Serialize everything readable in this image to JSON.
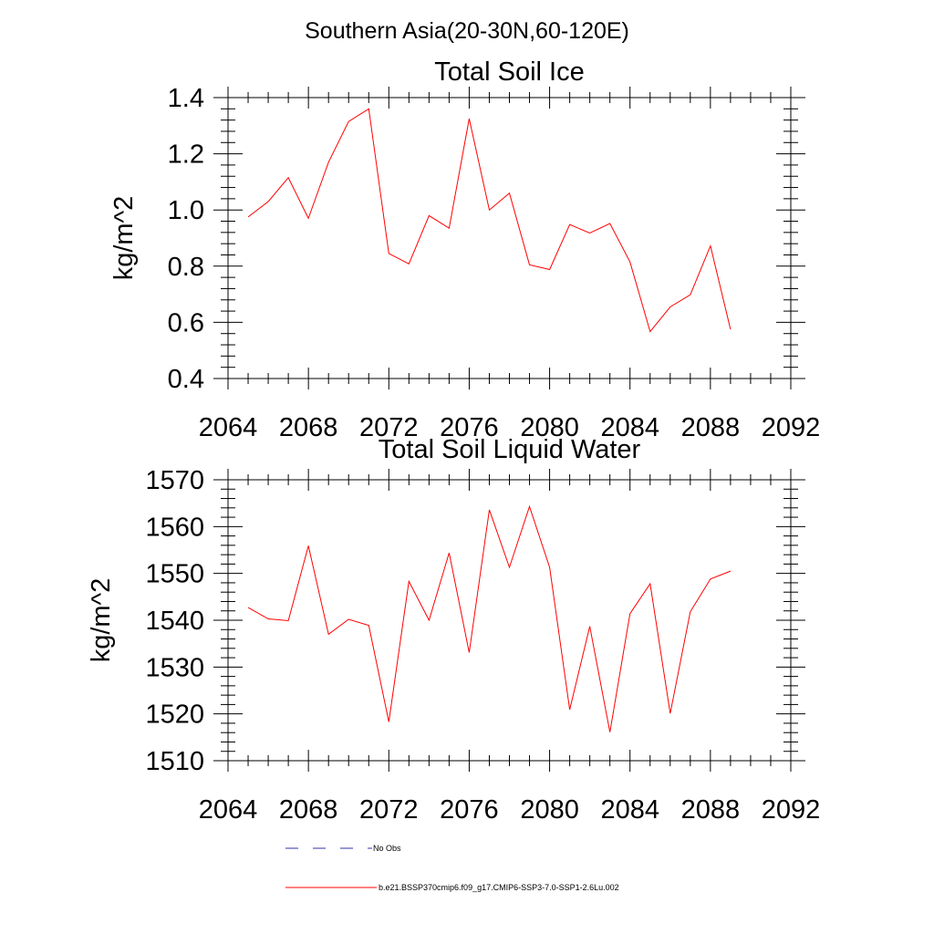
{
  "figure": {
    "main_title": "Southern Asia(20-30N,60-120E)"
  },
  "legend": {
    "items": [
      {
        "label": "No Obs",
        "color": "#3333aa",
        "style": "dashed"
      },
      {
        "label": "b.e21.BSSP370cmip6.f09_g17.CMIP6-SSP3-7.0-SSP1-2.6Lu.002",
        "color": "#ff0000",
        "style": "solid"
      }
    ]
  },
  "chart_data": [
    {
      "type": "line",
      "title": "Total Soil Ice",
      "ylabel": "kg/m^2",
      "xlabel": "",
      "xlim": [
        2064,
        2092
      ],
      "ylim": [
        0.4,
        1.4
      ],
      "xticks": [
        2064,
        2068,
        2072,
        2076,
        2080,
        2084,
        2088,
        2092
      ],
      "xtick_labels": [
        "2064",
        "2068",
        "2072",
        "2076",
        "2080",
        "2084",
        "2088",
        "2092"
      ],
      "yticks": [
        0.4,
        0.6,
        0.8,
        1.0,
        1.2,
        1.4
      ],
      "ytick_labels": [
        "0.4",
        "0.6",
        "0.8",
        "1.0",
        "1.2",
        "1.4"
      ],
      "series": [
        {
          "name": "b.e21.BSSP370cmip6.f09_g17.CMIP6-SSP3-7.0-SSP1-2.6Lu.002",
          "color": "#ff0000",
          "x": [
            2065,
            2066,
            2067,
            2068,
            2069,
            2070,
            2071,
            2072,
            2073,
            2074,
            2075,
            2076,
            2077,
            2078,
            2079,
            2080,
            2081,
            2082,
            2083,
            2084,
            2085,
            2086,
            2087,
            2088,
            2089
          ],
          "y": [
            0.975,
            1.03,
            1.115,
            0.97,
            1.17,
            1.315,
            1.36,
            0.845,
            0.808,
            0.98,
            0.935,
            1.325,
            1.0,
            1.06,
            0.805,
            0.788,
            0.948,
            0.918,
            0.952,
            0.815,
            0.567,
            0.655,
            0.698,
            0.872,
            0.575
          ]
        }
      ]
    },
    {
      "type": "line",
      "title": "Total Soil Liquid Water",
      "ylabel": "kg/m^2",
      "xlabel": "",
      "xlim": [
        2064,
        2092
      ],
      "ylim": [
        1510,
        1570
      ],
      "xticks": [
        2064,
        2068,
        2072,
        2076,
        2080,
        2084,
        2088,
        2092
      ],
      "xtick_labels": [
        "2064",
        "2068",
        "2072",
        "2076",
        "2080",
        "2084",
        "2088",
        "2092"
      ],
      "yticks": [
        1510,
        1520,
        1530,
        1540,
        1550,
        1560,
        1570
      ],
      "ytick_labels": [
        "1510",
        "1520",
        "1530",
        "1540",
        "1550",
        "1560",
        "1570"
      ],
      "series": [
        {
          "name": "b.e21.BSSP370cmip6.f09_g17.CMIP6-SSP3-7.0-SSP1-2.6Lu.002",
          "color": "#ff0000",
          "x": [
            2065,
            2066,
            2067,
            2068,
            2069,
            2070,
            2071,
            2072,
            2073,
            2074,
            2075,
            2076,
            2077,
            2078,
            2079,
            2080,
            2081,
            2082,
            2083,
            2084,
            2085,
            2086,
            2087,
            2088,
            2089
          ],
          "y": [
            1542.7,
            1540.3,
            1539.9,
            1555.9,
            1537.0,
            1540.2,
            1538.9,
            1518.3,
            1548.3,
            1540.0,
            1554.4,
            1533.1,
            1563.6,
            1551.3,
            1564.3,
            1551.3,
            1520.9,
            1538.7,
            1516.1,
            1541.4,
            1547.8,
            1520.1,
            1541.8,
            1548.8,
            1550.5
          ]
        }
      ]
    }
  ]
}
